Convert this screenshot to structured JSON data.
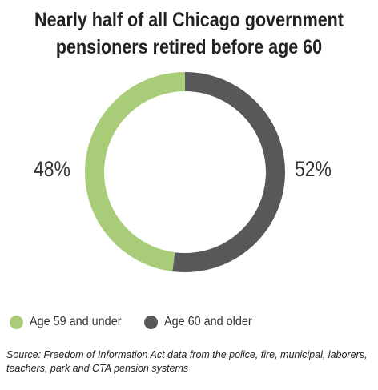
{
  "chart_data": {
    "type": "pie",
    "title": "Nearly half of all Chicago government pensioners retired before age 60",
    "title_lines": [
      "Nearly half of all Chicago government",
      "pensioners retired before age 60"
    ],
    "categories": [
      "Age 59 and under",
      "Age 60 and older"
    ],
    "values": [
      48,
      52
    ],
    "value_labels": [
      "48%",
      "52%"
    ],
    "colors": [
      "#a8cc78",
      "#58585a"
    ],
    "style": "donut",
    "legend_position": "bottom-left",
    "source": "Source: Freedom of Information Act data from the police, fire, municipal, laborers, teachers, park and CTA pension systems"
  }
}
